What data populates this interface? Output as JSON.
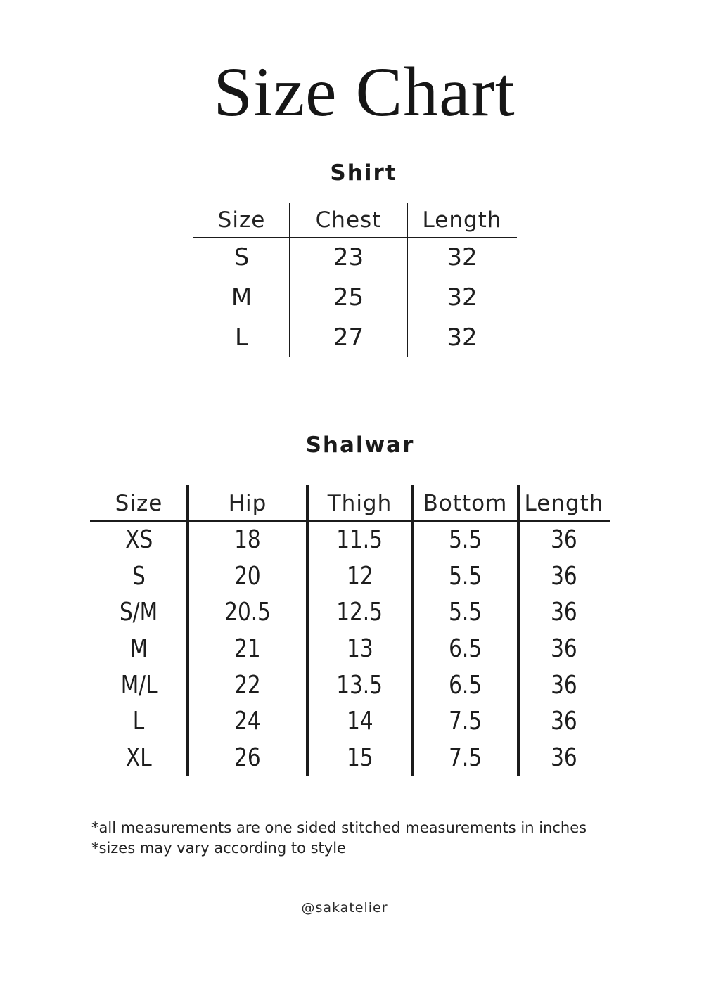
{
  "page": {
    "title": "Size Chart",
    "footnotes": [
      "*all measurements are one sided stitched measurements in inches",
      "*sizes may vary according to style"
    ],
    "handle": "@sakatelier",
    "background_color": "#ffffff",
    "text_color": "#1b1b1b",
    "line_color": "#1b1b1b",
    "measurement_unit": "inches"
  },
  "shirt": {
    "title": "Shirt",
    "columns": [
      "Size",
      "Chest",
      "Length"
    ],
    "rows": [
      {
        "size": "S",
        "chest": "23",
        "length": "32"
      },
      {
        "size": "M",
        "chest": "25",
        "length": "32"
      },
      {
        "size": "L",
        "chest": "27",
        "length": "32"
      }
    ]
  },
  "shalwar": {
    "title": "Shalwar",
    "columns": [
      "Size",
      "Hip",
      "Thigh",
      "Bottom",
      "Length"
    ],
    "rows": [
      {
        "size": "XS",
        "hip": "18",
        "thigh": "11.5",
        "bottom": "5.5",
        "length": "36"
      },
      {
        "size": "S",
        "hip": "20",
        "thigh": "12",
        "bottom": "5.5",
        "length": "36"
      },
      {
        "size": "S/M",
        "hip": "20.5",
        "thigh": "12.5",
        "bottom": "5.5",
        "length": "36"
      },
      {
        "size": "M",
        "hip": "21",
        "thigh": "13",
        "bottom": "6.5",
        "length": "36"
      },
      {
        "size": "M/L",
        "hip": "22",
        "thigh": "13.5",
        "bottom": "6.5",
        "length": "36"
      },
      {
        "size": "L",
        "hip": "24",
        "thigh": "14",
        "bottom": "7.5",
        "length": "36"
      },
      {
        "size": "XL",
        "hip": "26",
        "thigh": "15",
        "bottom": "7.5",
        "length": "36"
      }
    ]
  }
}
